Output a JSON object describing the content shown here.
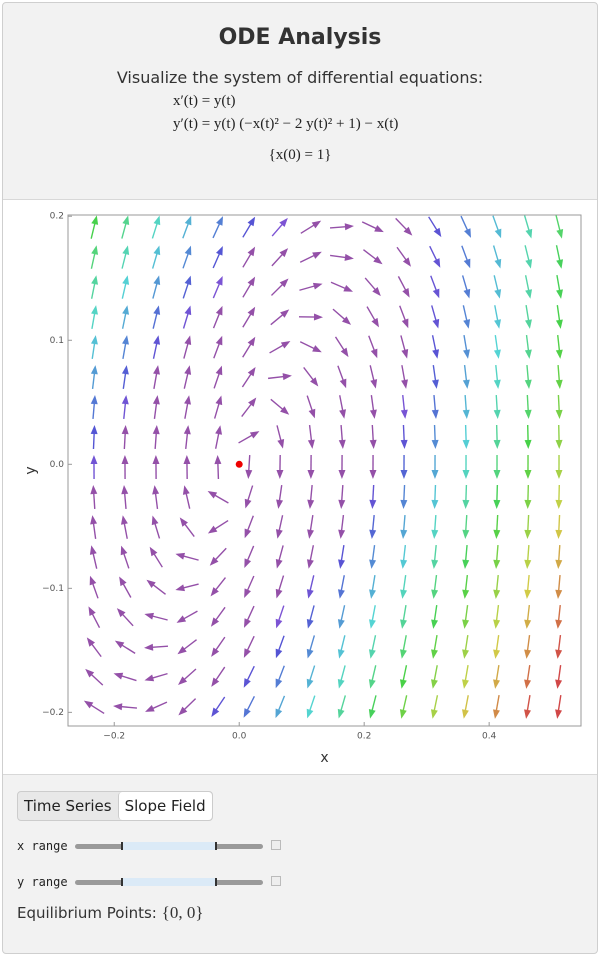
{
  "header": {
    "title": "ODE Analysis",
    "subtitle": "Visualize the system of differential equations:",
    "equations": [
      "x′(t) = y(t)",
      "y′(t) = y(t) (−x(t)² − 2 y(t)² + 1) − x(t)",
      "{x(0) = 1}"
    ]
  },
  "chart_data": {
    "type": "vector-field",
    "xlabel": "x",
    "ylabel": "y",
    "xlim": [
      -0.274,
      0.547
    ],
    "ylim": [
      -0.211,
      0.201
    ],
    "xticks": [
      {
        "value": -0.2,
        "label": "−0.2"
      },
      {
        "value": 0,
        "label": "0.0"
      },
      0.2,
      0.4
    ],
    "yticks": [
      {
        "value": -0.2,
        "label": "−0.2"
      },
      {
        "value": -0.1,
        "label": "−0.1"
      },
      {
        "value": 0,
        "label": "0.0"
      },
      0.1,
      0.2
    ]
  },
  "controls": {
    "tabs": [
      "Time Series",
      "Slope Field"
    ],
    "sliders": [
      "x range",
      "y range"
    ],
    "equilibrium_label": "Equilibrium Points:",
    "equilibrium_value": "{0, 0}"
  }
}
